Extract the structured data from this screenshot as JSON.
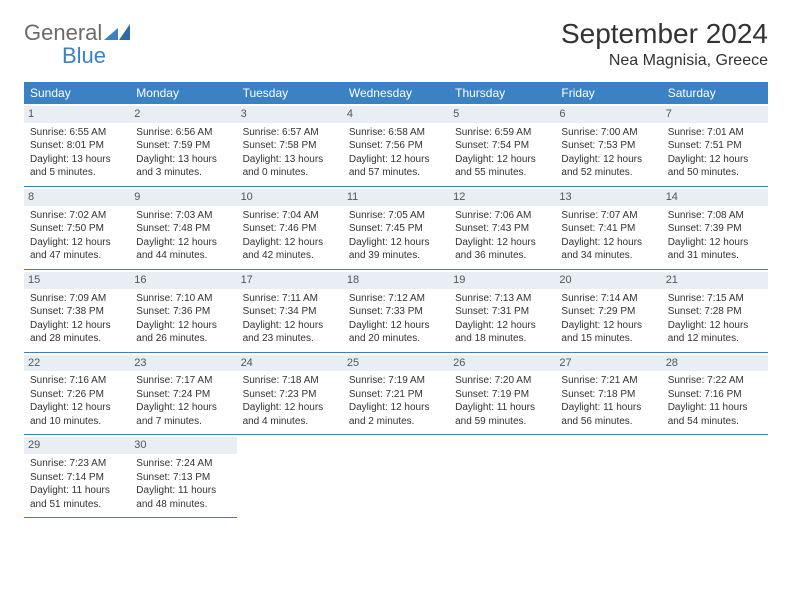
{
  "brand": {
    "general": "General",
    "blue": "Blue"
  },
  "title": "September 2024",
  "location": "Nea Magnisia, Greece",
  "colors": {
    "header_bg": "#3b82c4",
    "header_text": "#ffffff",
    "daynum_bg": "#e8eef4",
    "daynum_text": "#555555",
    "body_text": "#333333",
    "rule": "#3b82c4",
    "logo_gray": "#6b6b6b",
    "logo_blue": "#3b82c4",
    "page_bg": "#ffffff"
  },
  "typography": {
    "title_fontsize": 28,
    "location_fontsize": 16,
    "dayhead_fontsize": 12,
    "cell_fontsize": 10,
    "logo_fontsize": 22
  },
  "day_names": [
    "Sunday",
    "Monday",
    "Tuesday",
    "Wednesday",
    "Thursday",
    "Friday",
    "Saturday"
  ],
  "weeks": [
    [
      {
        "n": "1",
        "sr": "Sunrise: 6:55 AM",
        "ss": "Sunset: 8:01 PM",
        "dl": "Daylight: 13 hours and 5 minutes."
      },
      {
        "n": "2",
        "sr": "Sunrise: 6:56 AM",
        "ss": "Sunset: 7:59 PM",
        "dl": "Daylight: 13 hours and 3 minutes."
      },
      {
        "n": "3",
        "sr": "Sunrise: 6:57 AM",
        "ss": "Sunset: 7:58 PM",
        "dl": "Daylight: 13 hours and 0 minutes."
      },
      {
        "n": "4",
        "sr": "Sunrise: 6:58 AM",
        "ss": "Sunset: 7:56 PM",
        "dl": "Daylight: 12 hours and 57 minutes."
      },
      {
        "n": "5",
        "sr": "Sunrise: 6:59 AM",
        "ss": "Sunset: 7:54 PM",
        "dl": "Daylight: 12 hours and 55 minutes."
      },
      {
        "n": "6",
        "sr": "Sunrise: 7:00 AM",
        "ss": "Sunset: 7:53 PM",
        "dl": "Daylight: 12 hours and 52 minutes."
      },
      {
        "n": "7",
        "sr": "Sunrise: 7:01 AM",
        "ss": "Sunset: 7:51 PM",
        "dl": "Daylight: 12 hours and 50 minutes."
      }
    ],
    [
      {
        "n": "8",
        "sr": "Sunrise: 7:02 AM",
        "ss": "Sunset: 7:50 PM",
        "dl": "Daylight: 12 hours and 47 minutes."
      },
      {
        "n": "9",
        "sr": "Sunrise: 7:03 AM",
        "ss": "Sunset: 7:48 PM",
        "dl": "Daylight: 12 hours and 44 minutes."
      },
      {
        "n": "10",
        "sr": "Sunrise: 7:04 AM",
        "ss": "Sunset: 7:46 PM",
        "dl": "Daylight: 12 hours and 42 minutes."
      },
      {
        "n": "11",
        "sr": "Sunrise: 7:05 AM",
        "ss": "Sunset: 7:45 PM",
        "dl": "Daylight: 12 hours and 39 minutes."
      },
      {
        "n": "12",
        "sr": "Sunrise: 7:06 AM",
        "ss": "Sunset: 7:43 PM",
        "dl": "Daylight: 12 hours and 36 minutes."
      },
      {
        "n": "13",
        "sr": "Sunrise: 7:07 AM",
        "ss": "Sunset: 7:41 PM",
        "dl": "Daylight: 12 hours and 34 minutes."
      },
      {
        "n": "14",
        "sr": "Sunrise: 7:08 AM",
        "ss": "Sunset: 7:39 PM",
        "dl": "Daylight: 12 hours and 31 minutes."
      }
    ],
    [
      {
        "n": "15",
        "sr": "Sunrise: 7:09 AM",
        "ss": "Sunset: 7:38 PM",
        "dl": "Daylight: 12 hours and 28 minutes."
      },
      {
        "n": "16",
        "sr": "Sunrise: 7:10 AM",
        "ss": "Sunset: 7:36 PM",
        "dl": "Daylight: 12 hours and 26 minutes."
      },
      {
        "n": "17",
        "sr": "Sunrise: 7:11 AM",
        "ss": "Sunset: 7:34 PM",
        "dl": "Daylight: 12 hours and 23 minutes."
      },
      {
        "n": "18",
        "sr": "Sunrise: 7:12 AM",
        "ss": "Sunset: 7:33 PM",
        "dl": "Daylight: 12 hours and 20 minutes."
      },
      {
        "n": "19",
        "sr": "Sunrise: 7:13 AM",
        "ss": "Sunset: 7:31 PM",
        "dl": "Daylight: 12 hours and 18 minutes."
      },
      {
        "n": "20",
        "sr": "Sunrise: 7:14 AM",
        "ss": "Sunset: 7:29 PM",
        "dl": "Daylight: 12 hours and 15 minutes."
      },
      {
        "n": "21",
        "sr": "Sunrise: 7:15 AM",
        "ss": "Sunset: 7:28 PM",
        "dl": "Daylight: 12 hours and 12 minutes."
      }
    ],
    [
      {
        "n": "22",
        "sr": "Sunrise: 7:16 AM",
        "ss": "Sunset: 7:26 PM",
        "dl": "Daylight: 12 hours and 10 minutes."
      },
      {
        "n": "23",
        "sr": "Sunrise: 7:17 AM",
        "ss": "Sunset: 7:24 PM",
        "dl": "Daylight: 12 hours and 7 minutes."
      },
      {
        "n": "24",
        "sr": "Sunrise: 7:18 AM",
        "ss": "Sunset: 7:23 PM",
        "dl": "Daylight: 12 hours and 4 minutes."
      },
      {
        "n": "25",
        "sr": "Sunrise: 7:19 AM",
        "ss": "Sunset: 7:21 PM",
        "dl": "Daylight: 12 hours and 2 minutes."
      },
      {
        "n": "26",
        "sr": "Sunrise: 7:20 AM",
        "ss": "Sunset: 7:19 PM",
        "dl": "Daylight: 11 hours and 59 minutes."
      },
      {
        "n": "27",
        "sr": "Sunrise: 7:21 AM",
        "ss": "Sunset: 7:18 PM",
        "dl": "Daylight: 11 hours and 56 minutes."
      },
      {
        "n": "28",
        "sr": "Sunrise: 7:22 AM",
        "ss": "Sunset: 7:16 PM",
        "dl": "Daylight: 11 hours and 54 minutes."
      }
    ],
    [
      {
        "n": "29",
        "sr": "Sunrise: 7:23 AM",
        "ss": "Sunset: 7:14 PM",
        "dl": "Daylight: 11 hours and 51 minutes."
      },
      {
        "n": "30",
        "sr": "Sunrise: 7:24 AM",
        "ss": "Sunset: 7:13 PM",
        "dl": "Daylight: 11 hours and 48 minutes."
      },
      {
        "empty": true
      },
      {
        "empty": true
      },
      {
        "empty": true
      },
      {
        "empty": true
      },
      {
        "empty": true
      }
    ]
  ]
}
